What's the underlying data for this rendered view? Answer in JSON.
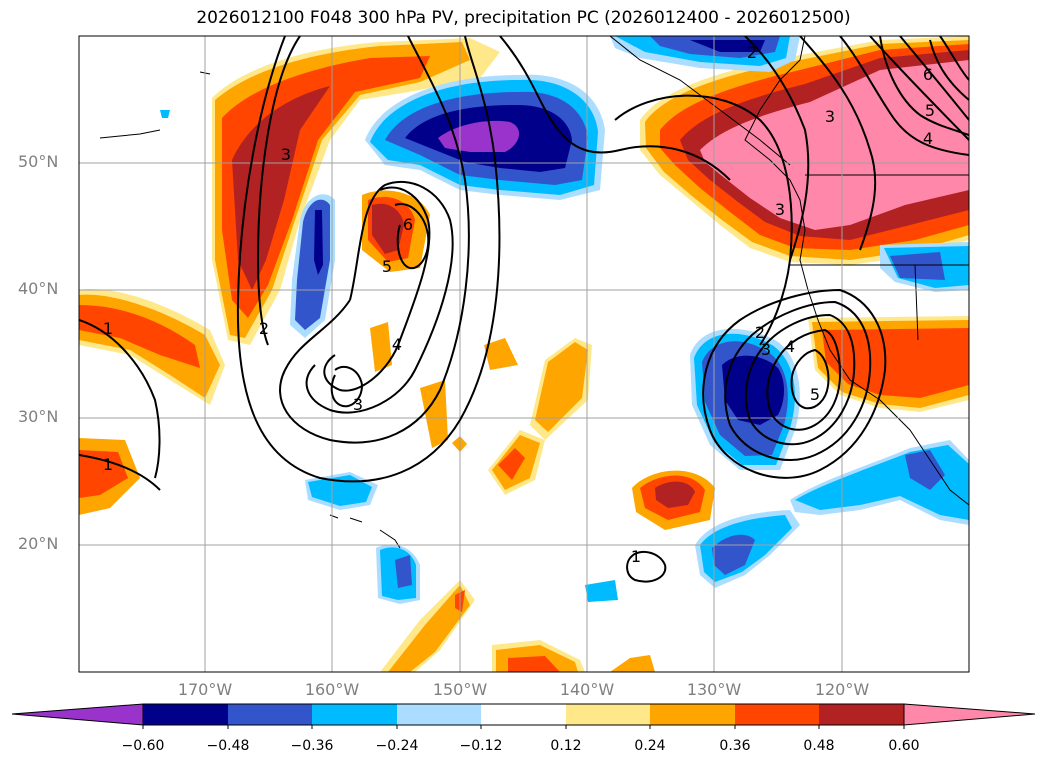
{
  "title": "2026012100 F048 300 hPa PV, precipitation PC (2026012400 - 2026012500)",
  "lat_labels": [
    "50°N",
    "40°N",
    "30°N",
    "20°N"
  ],
  "lon_labels": [
    "170°W",
    "160°W",
    "150°W",
    "140°W",
    "130°W",
    "120°W"
  ],
  "colorbar": {
    "ticks": [
      "−0.60",
      "−0.48",
      "−0.36",
      "−0.24",
      "−0.12",
      "0.12",
      "0.24",
      "0.36",
      "0.48",
      "0.60"
    ],
    "colors": [
      "#9933cc",
      "#00008b",
      "#3355cc",
      "#00bbff",
      "#aaddff",
      "#ffffff",
      "#ffe88a",
      "#ffa500",
      "#ff4500",
      "#b22222",
      "#ff88aa"
    ]
  },
  "contour_labels": [
    "3",
    "2",
    "1",
    "6",
    "5",
    "4",
    "3",
    "3",
    "2",
    "4",
    "5",
    "3",
    "2",
    "1",
    "6",
    "5",
    "4",
    "3",
    "1"
  ]
}
